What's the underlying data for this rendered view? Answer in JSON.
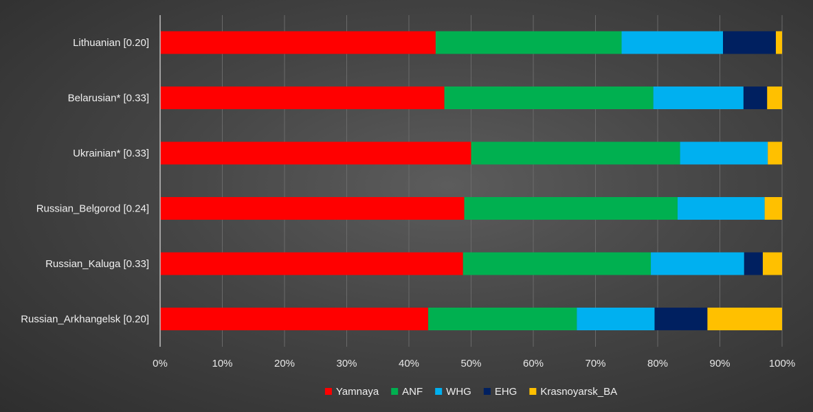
{
  "chart_data": {
    "type": "bar",
    "orientation": "horizontal",
    "stacked": true,
    "categories": [
      "Lithuanian [0.20]",
      "Belarusian* [0.33]",
      "Ukrainian* [0.33]",
      "Russian_Belgorod [0.24]",
      "Russian_Kaluga [0.33]",
      "Russian_Arkhangelsk [0.20]"
    ],
    "series": [
      {
        "name": "Yamnaya",
        "color": "#ff0000",
        "values": [
          44.3,
          45.7,
          50.0,
          48.9,
          48.7,
          43.1
        ]
      },
      {
        "name": "ANF",
        "color": "#00b050",
        "values": [
          29.9,
          33.6,
          33.6,
          34.3,
          30.2,
          23.9
        ]
      },
      {
        "name": "WHG",
        "color": "#00b0f0",
        "values": [
          16.3,
          14.5,
          14.1,
          14.0,
          15.0,
          12.5
        ]
      },
      {
        "name": "EHG",
        "color": "#002060",
        "values": [
          8.5,
          3.8,
          0.0,
          0.0,
          3.0,
          8.5
        ]
      },
      {
        "name": "Krasnoyarsk_BA",
        "color": "#ffc000",
        "values": [
          1.0,
          2.4,
          2.3,
          2.8,
          3.1,
          12.0
        ]
      }
    ],
    "xticks": [
      "0%",
      "10%",
      "20%",
      "30%",
      "40%",
      "50%",
      "60%",
      "70%",
      "80%",
      "90%",
      "100%"
    ],
    "xlim": [
      0,
      100
    ],
    "grid": true,
    "legend": "bottom"
  }
}
